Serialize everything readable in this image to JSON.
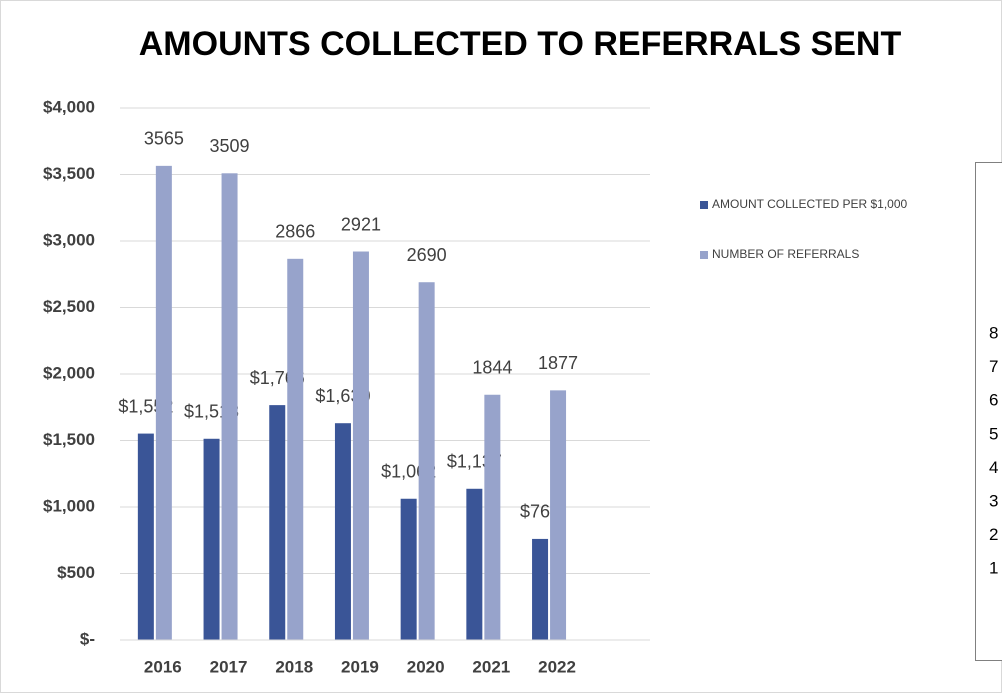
{
  "chart_data": {
    "type": "bar",
    "title": "AMOUNTS COLLECTED TO REFERRALS SENT",
    "categories": [
      "2016",
      "2017",
      "2018",
      "2019",
      "2020",
      "2021",
      "2022"
    ],
    "series": [
      {
        "name": "AMOUNT COLLECTED PER $1,000",
        "color": "#3a5597",
        "values": [
          1552,
          1513,
          1766,
          1630,
          1062,
          1137,
          760
        ],
        "value_labels": [
          "$1,552",
          "$1,513",
          "$1,766",
          "$1,630",
          "$1,062",
          "$1,137",
          "$760"
        ]
      },
      {
        "name": "NUMBER OF REFERRALS",
        "color": "#97a3cb",
        "values": [
          3565,
          3509,
          2866,
          2921,
          2690,
          1844,
          1877
        ]
      }
    ],
    "ylim": [
      0,
      4000
    ],
    "yticks": [
      {
        "value": 0,
        "label": "$-"
      },
      {
        "value": 500,
        "label": "$500"
      },
      {
        "value": 1000,
        "label": "$1,000"
      },
      {
        "value": 1500,
        "label": "$1,500"
      },
      {
        "value": 2000,
        "label": "$2,000"
      },
      {
        "value": 2500,
        "label": "$2,500"
      },
      {
        "value": 3000,
        "label": "$3,000"
      },
      {
        "value": 3500,
        "label": "$3,500"
      },
      {
        "value": 4000,
        "label": "$4,000"
      }
    ],
    "grid": true,
    "legend": "right"
  },
  "side_panel": {
    "labels": [
      "8",
      "7",
      "6",
      "5",
      "4",
      "3",
      "2",
      "1"
    ]
  }
}
